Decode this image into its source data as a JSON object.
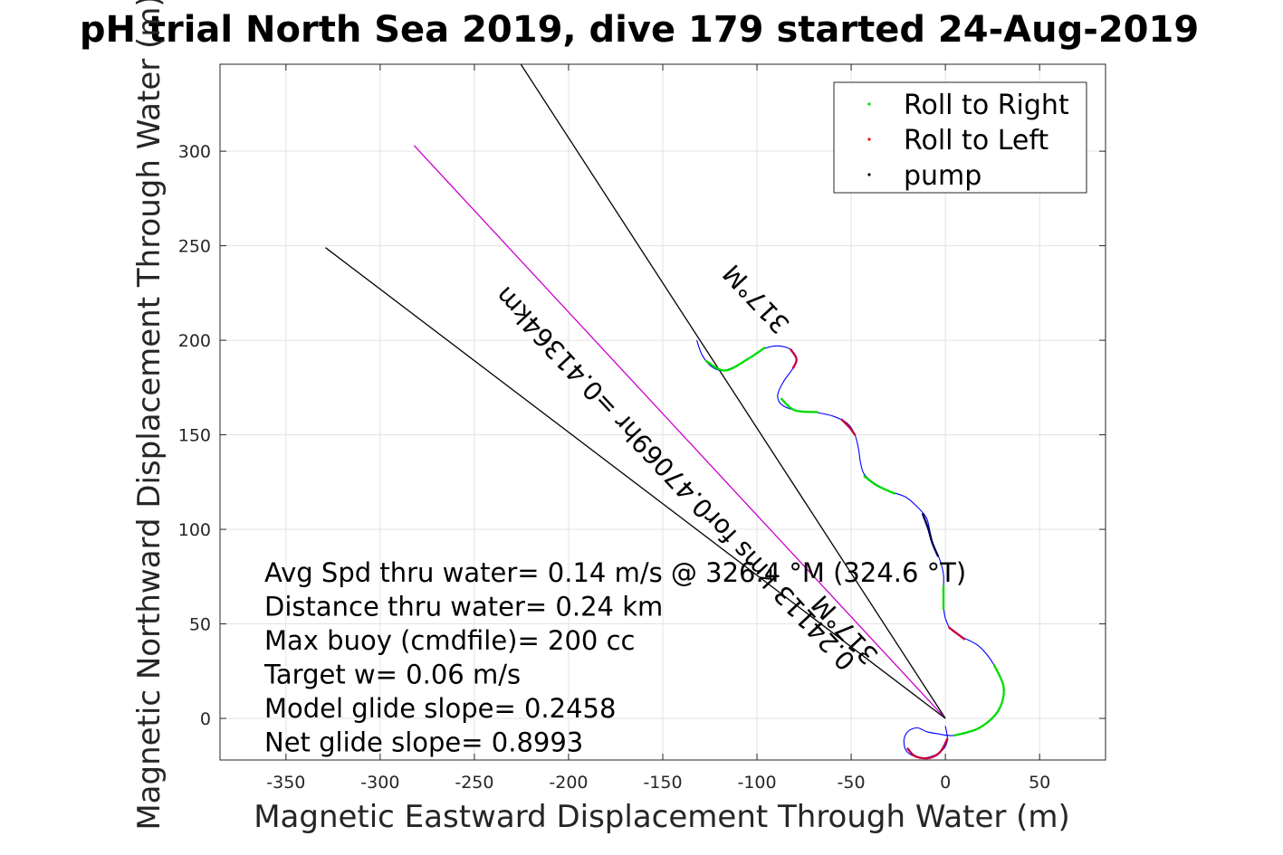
{
  "chart_data": {
    "type": "scatter",
    "title": "pH trial North Sea 2019, dive 179 started 24-Aug-2019",
    "xlabel": "Magnetic Eastward Displacement Through Water (m)",
    "ylabel": "Magnetic Northward Displacement Through Water (m)",
    "xlim": [
      -385,
      85
    ],
    "ylim": [
      -22,
      346
    ],
    "xticks": [
      -350,
      -300,
      -250,
      -200,
      -150,
      -100,
      -50,
      0,
      50
    ],
    "yticks": [
      0,
      50,
      100,
      150,
      200,
      250,
      300
    ],
    "grid": true,
    "legend_position": "top-right",
    "legend": [
      {
        "label": "Roll to Right",
        "color": "#00dd00"
      },
      {
        "label": "Roll to Left",
        "color": "#ff0000"
      },
      {
        "label": "pump",
        "color": "#000000"
      }
    ],
    "track_color": "#0000ff",
    "track": [
      [
        -132,
        200
      ],
      [
        -129,
        192
      ],
      [
        -124,
        186
      ],
      [
        -118,
        184
      ],
      [
        -110,
        187
      ],
      [
        -102,
        192
      ],
      [
        -95,
        196
      ],
      [
        -88,
        197
      ],
      [
        -82,
        195
      ],
      [
        -79,
        190
      ],
      [
        -81,
        185
      ],
      [
        -86,
        178
      ],
      [
        -89,
        171
      ],
      [
        -87,
        166
      ],
      [
        -80,
        163
      ],
      [
        -70,
        162
      ],
      [
        -60,
        160
      ],
      [
        -52,
        156
      ],
      [
        -48,
        150
      ],
      [
        -46,
        142
      ],
      [
        -45,
        135
      ],
      [
        -43,
        129
      ],
      [
        -37,
        124
      ],
      [
        -29,
        120
      ],
      [
        -21,
        117
      ],
      [
        -15,
        112
      ],
      [
        -10,
        106
      ],
      [
        -8,
        98
      ],
      [
        -6,
        90
      ],
      [
        -3,
        84
      ],
      [
        -1,
        76
      ],
      [
        -1,
        68
      ],
      [
        -1,
        60
      ],
      [
        0,
        53
      ],
      [
        3,
        47
      ],
      [
        9,
        43
      ],
      [
        18,
        38
      ],
      [
        26,
        28
      ],
      [
        31,
        16
      ],
      [
        28,
        4
      ],
      [
        18,
        -5
      ],
      [
        5,
        -9
      ],
      [
        -5,
        -8
      ],
      [
        -10,
        -7
      ],
      [
        -15,
        -5
      ],
      [
        -20,
        -7
      ],
      [
        -22,
        -12
      ],
      [
        -20,
        -18
      ],
      [
        -12,
        -21
      ],
      [
        -3,
        -18
      ],
      [
        1,
        -12
      ],
      [
        0,
        -4
      ]
    ],
    "roll_right_segments": [
      [
        [
          -127,
          189
        ],
        [
          -117,
          184
        ],
        [
          -105,
          190
        ],
        [
          -96,
          196
        ]
      ],
      [
        [
          -87,
          169
        ],
        [
          -80,
          163
        ],
        [
          -68,
          162
        ]
      ],
      [
        [
          -43,
          128
        ],
        [
          -36,
          123
        ],
        [
          -27,
          119
        ]
      ],
      [
        [
          -1,
          70
        ],
        [
          -1,
          62
        ],
        [
          -1,
          58
        ]
      ],
      [
        [
          26,
          28
        ],
        [
          31,
          16
        ],
        [
          28,
          4
        ],
        [
          18,
          -5
        ],
        [
          5,
          -9
        ]
      ]
    ],
    "roll_left_segments": [
      [
        [
          -82,
          195
        ],
        [
          -79,
          190
        ],
        [
          -81,
          185
        ]
      ],
      [
        [
          -55,
          158
        ],
        [
          -51,
          154
        ],
        [
          -48,
          150
        ]
      ],
      [
        [
          2,
          48
        ],
        [
          6,
          45
        ],
        [
          10,
          42
        ]
      ],
      [
        [
          -20,
          -16
        ],
        [
          -16,
          -20
        ],
        [
          -9,
          -21
        ],
        [
          -3,
          -18
        ],
        [
          1,
          -11
        ]
      ]
    ],
    "pump_segments": [
      [
        [
          -12,
          108
        ],
        [
          -9,
          100
        ],
        [
          -7,
          93
        ],
        [
          -4,
          86
        ]
      ]
    ],
    "heading_lines": [
      {
        "from": [
          0,
          0
        ],
        "to": [
          -226,
          347
        ],
        "color": "#000000"
      },
      {
        "from": [
          0,
          0
        ],
        "to": [
          -282,
          303
        ],
        "color": "#cc00cc"
      },
      {
        "from": [
          0,
          0
        ],
        "to": [
          -329,
          249
        ],
        "color": "#000000"
      }
    ],
    "rotated_labels": [
      {
        "text": "317°M",
        "at": [
          -97,
          225
        ],
        "angle": 47
      },
      {
        "text": "0.24113 kms for0.47069hr =0.41364km",
        "at": [
          -140,
          130
        ],
        "angle": 47
      },
      {
        "text": "317°M",
        "at": [
          -50,
          50
        ],
        "angle": 47
      }
    ],
    "annotations": [
      "Avg Spd thru water=  0.14 m/s @ 326.4 °M (324.6 °T)",
      "Distance thru water=  0.24 km",
      "Max buoy (cmdfile)= 200 cc",
      "Target w= 0.06 m/s",
      "Model glide slope= 0.2458",
      "Net glide slope= 0.8993"
    ]
  }
}
